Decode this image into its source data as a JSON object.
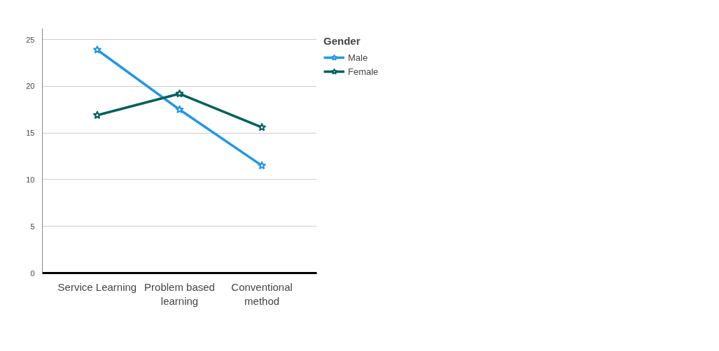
{
  "chart_data": {
    "type": "line",
    "legend_title": "Gender",
    "categories": [
      "Service Learning",
      "Problem based learning",
      "Conventional method"
    ],
    "series": [
      {
        "name": "Male",
        "color": "#2196e8",
        "values": [
          23.9,
          17.5,
          11.5
        ]
      },
      {
        "name": "Female",
        "color": "#00605a",
        "values": [
          16.9,
          19.2,
          15.6
        ]
      }
    ],
    "ylim": [
      0,
      26.2
    ],
    "yticks": [
      0,
      5,
      10,
      15,
      20,
      25
    ],
    "grid": "y",
    "legend": "right",
    "marker": "star",
    "line_style": "solid"
  }
}
